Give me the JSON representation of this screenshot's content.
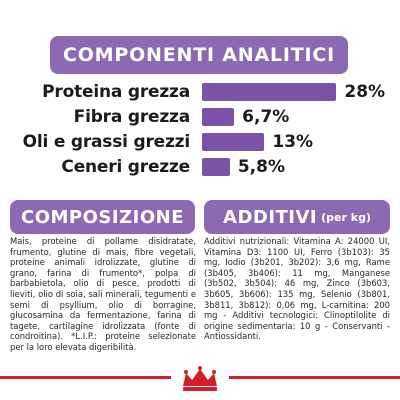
{
  "analytic": {
    "title": "COMPONENTI ANALITICI",
    "rows": [
      {
        "label": "Proteina grezza",
        "value": "28%",
        "percent": 28
      },
      {
        "label": "Fibra grezza",
        "value": "6,7%",
        "percent": 6.7
      },
      {
        "label": "Oli e grassi grezzi",
        "value": "13%",
        "percent": 13
      },
      {
        "label": "Ceneri grezze",
        "value": "5,8%",
        "percent": 5.8
      }
    ]
  },
  "composition": {
    "title": "COMPOSIZIONE",
    "text": "Mais, proteine di pollame disidratate, frumento, glutine di mais, fibre vegetali, proteine animali idrolizzate, glutine di grano, farina di frumento*, polpa di barbabietola, olio di pesce, prodotti di lieviti, olio di soia, sali minerali, tegumenti e semi di psyllium, olio di borragine, glucosamina da fermentazione, farina di tagete, cartilagine idrolizzata (fonte di condroitina). *L.I.P.: proteine selezionate per la loro elevata digeribilità."
  },
  "additives": {
    "title": "ADDITIVI",
    "unit": "(per kg)",
    "text": "Additivi nutrizionali: Vitamina A: 24000 UI, Vitamina D3: 1100 UI, Ferro (3b103): 35 mg, Iodio (3b201, 3b202): 3,6 mg, Rame (3b405, 3b406): 11 mg, Manganese (3b502, 3b504): 46 mg, Zinco (3b603, 3b605, 3b606): 135 mg, Selenio (3b801, 3b811, 3b812): 0,06 mg, L-carnitina: 200 mg - Additivi tecnologici: Clinoptilolite di origine sedimentaria: 10 g - Conservanti - Antiossidanti."
  },
  "logo": {
    "icon": "crown-logo-icon"
  },
  "colors": {
    "accent": "#8c6ab2",
    "bar": "#7a52a8",
    "brand_red": "#d22029"
  }
}
